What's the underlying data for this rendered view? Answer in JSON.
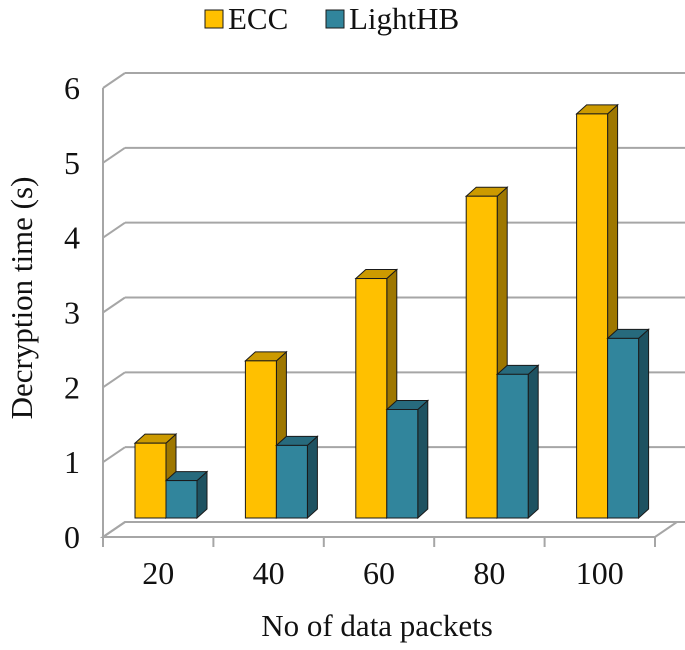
{
  "chart_data": {
    "type": "bar",
    "style": "3d-clustered-column",
    "categories": [
      "20",
      "40",
      "60",
      "80",
      "100"
    ],
    "series": [
      {
        "name": "ECC",
        "values": [
          1.0,
          2.1,
          3.2,
          4.3,
          5.4
        ],
        "color": "#ffc000"
      },
      {
        "name": "LightHB",
        "values": [
          0.5,
          0.97,
          1.45,
          1.92,
          2.4
        ],
        "color": "#31859c"
      }
    ],
    "xlabel": "No of data packets",
    "ylabel": "Decryption time (s)",
    "ylim": [
      0,
      6
    ],
    "yticks": [
      "0",
      "1",
      "2",
      "3",
      "4",
      "5",
      "6"
    ],
    "grid": true,
    "legend": "top-center"
  }
}
